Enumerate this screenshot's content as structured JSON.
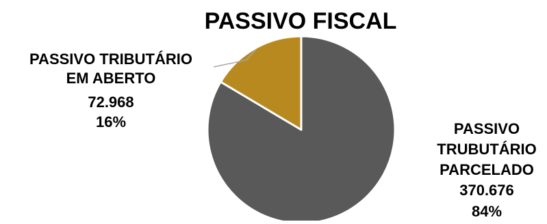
{
  "chart_data": {
    "type": "pie",
    "title": "PASSIVO FISCAL",
    "slices": [
      {
        "label_lines": [
          "PASSIVO",
          "TRUBUTÁRIO",
          "PARCELADO"
        ],
        "value": 370676,
        "value_text": "370.676",
        "percent": 84,
        "percent_text": "84%",
        "color": "#595959"
      },
      {
        "label_lines": [
          "PASSIVO TRIBUTÁRIO",
          "EM ABERTO"
        ],
        "value": 72968,
        "value_text": "72.968",
        "percent": 16,
        "percent_text": "16%",
        "color": "#B8891F"
      }
    ],
    "start_angle_deg": 0,
    "direction": "clockwise",
    "legend": "none",
    "data_labels": "outside with leader line"
  }
}
